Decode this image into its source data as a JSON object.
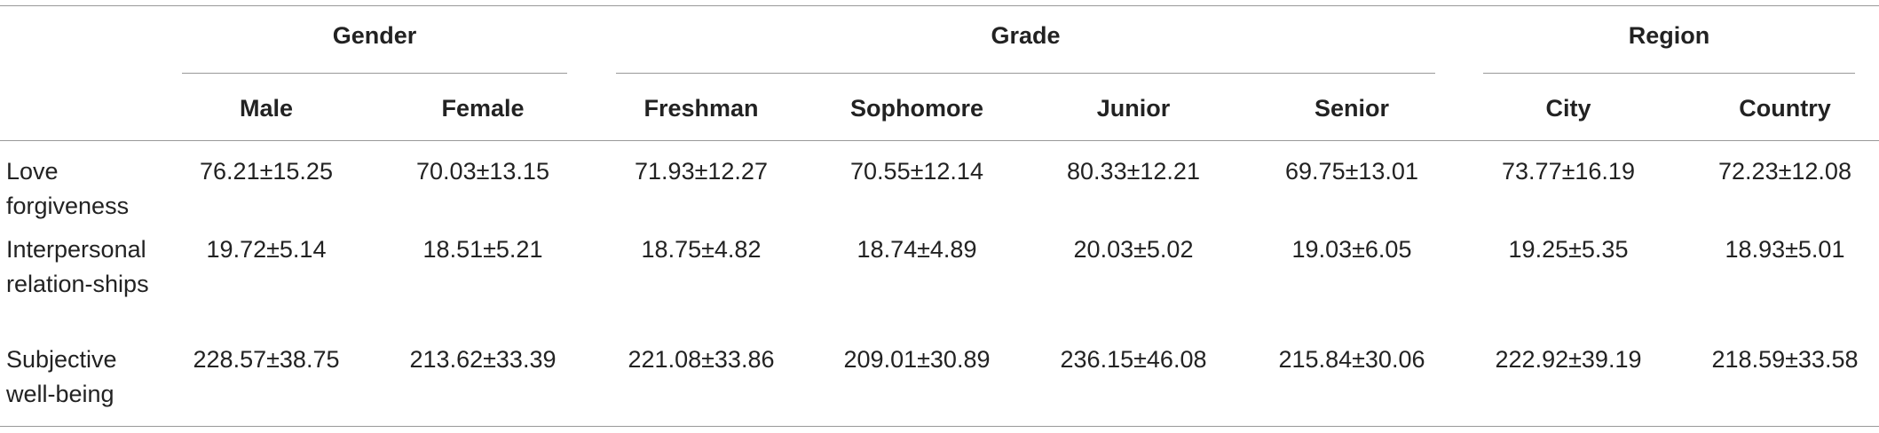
{
  "table": {
    "groups": [
      {
        "label": "Gender",
        "columns": [
          "Male",
          "Female"
        ]
      },
      {
        "label": "Grade",
        "columns": [
          "Freshman",
          "Sophomore",
          "Junior",
          "Senior"
        ]
      },
      {
        "label": "Region",
        "columns": [
          "City",
          "Country"
        ]
      }
    ],
    "rows": [
      {
        "label": "Love forgiveness",
        "cells": [
          "76.21±15.25",
          "70.03±13.15",
          "71.93±12.27",
          "70.55±12.14",
          "80.33±12.21",
          "69.75±13.01",
          "73.77±16.19",
          "72.23±12.08"
        ]
      },
      {
        "label": "Interpersonal relation-ships",
        "cells": [
          "19.72±5.14",
          "18.51±5.21",
          "18.75±4.82",
          "18.74±4.89",
          "20.03±5.02",
          "19.03±6.05",
          "19.25±5.35",
          "18.93±5.01"
        ]
      },
      {
        "label": "Subjective well-being",
        "cells": [
          "228.57±38.75",
          "213.62±33.39",
          "221.08±33.86",
          "209.01±30.89",
          "236.15±46.08",
          "215.84±30.06",
          "222.92±39.19",
          "218.59±33.58"
        ]
      }
    ]
  }
}
